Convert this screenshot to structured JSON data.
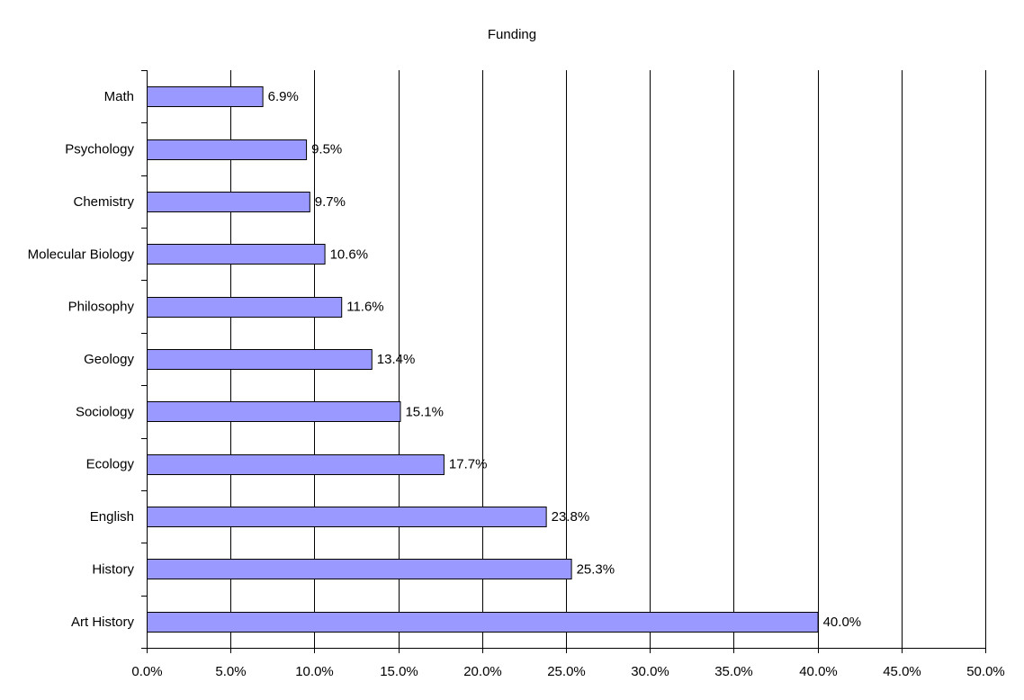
{
  "chart_data": {
    "type": "bar",
    "orientation": "horizontal",
    "title": "Funding",
    "xlabel": "",
    "ylabel": "",
    "categories": [
      "Math",
      "Psychology",
      "Chemistry",
      "Molecular Biology",
      "Philosophy",
      "Geology",
      "Sociology",
      "Ecology",
      "English",
      "History",
      "Art History"
    ],
    "values": [
      6.9,
      9.5,
      9.7,
      10.6,
      11.6,
      13.4,
      15.1,
      17.7,
      23.8,
      25.3,
      40.0
    ],
    "data_labels": [
      "6.9%",
      "9.5%",
      "9.7%",
      "10.6%",
      "11.6%",
      "13.4%",
      "15.1%",
      "17.7%",
      "23.8%",
      "25.3%",
      "40.0%"
    ],
    "xlim": [
      0,
      50
    ],
    "x_ticks": [
      0,
      5,
      10,
      15,
      20,
      25,
      30,
      35,
      40,
      45,
      50
    ],
    "x_tick_labels": [
      "0.0%",
      "5.0%",
      "10.0%",
      "15.0%",
      "20.0%",
      "25.0%",
      "30.0%",
      "35.0%",
      "40.0%",
      "45.0%",
      "50.0%"
    ],
    "grid": "vertical major gridlines",
    "legend": "none",
    "colors": {
      "bar_fill": "#9999ff",
      "bar_stroke": "#000000",
      "grid": "#000000"
    }
  }
}
